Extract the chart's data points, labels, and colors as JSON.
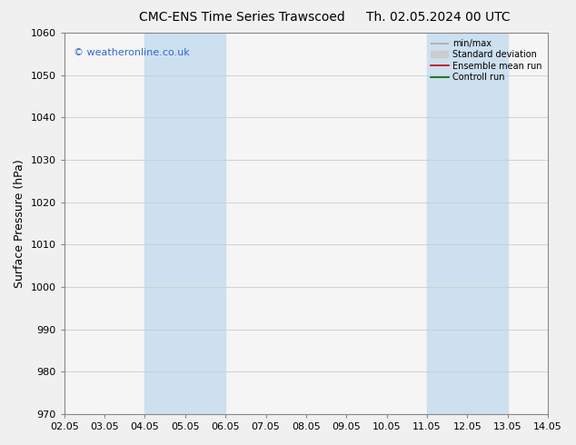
{
  "title": "CMC-ENS Time Series Trawscoed",
  "title_right": "Th. 02.05.2024 00 UTC",
  "ylabel": "Surface Pressure (hPa)",
  "ylim": [
    970,
    1060
  ],
  "yticks": [
    970,
    980,
    990,
    1000,
    1010,
    1020,
    1030,
    1040,
    1050,
    1060
  ],
  "xtick_labels": [
    "02.05",
    "03.05",
    "04.05",
    "05.05",
    "06.05",
    "07.05",
    "08.05",
    "09.05",
    "10.05",
    "11.05",
    "12.05",
    "13.05",
    "14.05"
  ],
  "xtick_positions": [
    2,
    3,
    4,
    5,
    6,
    7,
    8,
    9,
    10,
    11,
    12,
    13,
    14
  ],
  "watermark": "© weatheronline.co.uk",
  "shaded_bands": [
    {
      "xstart": 4.0,
      "xend": 6.0
    },
    {
      "xstart": 11.0,
      "xend": 13.0
    }
  ],
  "legend_items": [
    {
      "label": "min/max",
      "color": "#aaaaaa",
      "lw": 1.2
    },
    {
      "label": "Standard deviation",
      "color": "#cccccc",
      "lw": 6
    },
    {
      "label": "Ensemble mean run",
      "color": "#cc0000",
      "lw": 1.2
    },
    {
      "label": "Controll run",
      "color": "#006600",
      "lw": 1.2
    }
  ],
  "bg_color": "#f0f0f0",
  "plot_bg_color": "#f5f5f5",
  "grid_color": "#cccccc",
  "shaded_color": "#cce0f0",
  "title_fontsize": 10,
  "tick_fontsize": 8,
  "ylabel_fontsize": 9,
  "watermark_color": "#3366cc",
  "xlim": [
    2,
    14
  ]
}
